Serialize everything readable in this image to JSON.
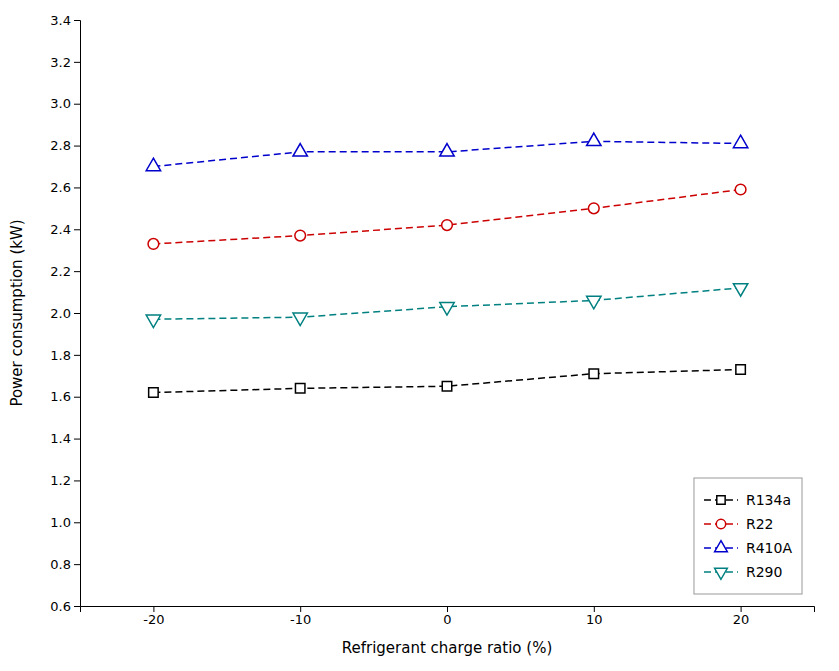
{
  "chart_data": {
    "type": "line",
    "xlabel": "Refrigerant charge ratio (%)",
    "ylabel": "Power consumption (kW)",
    "x": [
      -20,
      -10,
      0,
      10,
      20
    ],
    "series": [
      {
        "name": "R134a",
        "color": "black",
        "marker": "square",
        "line_style": "dashed",
        "values": [
          1.62,
          1.64,
          1.65,
          1.71,
          1.73
        ]
      },
      {
        "name": "R22",
        "color": "#cc0000",
        "marker": "circle",
        "line_style": "dashed",
        "values": [
          2.33,
          2.37,
          2.42,
          2.5,
          2.59
        ]
      },
      {
        "name": "R410A",
        "color": "#0000cc",
        "marker": "triangle-up",
        "line_style": "dashed",
        "values": [
          2.7,
          2.77,
          2.77,
          2.82,
          2.81
        ]
      },
      {
        "name": "R290",
        "color": "#008080",
        "marker": "triangle-down",
        "line_style": "dashed",
        "values": [
          1.97,
          1.98,
          2.03,
          2.06,
          2.12
        ]
      }
    ],
    "xlim": [
      -25,
      25
    ],
    "xticks": [
      -20,
      -10,
      0,
      10,
      20
    ],
    "ylim": [
      0.6,
      3.4
    ],
    "yticks": [
      0.6,
      0.8,
      {
        "value": 1.0,
        "label": "1.0"
      },
      1.2,
      1.4,
      1.6,
      1.8,
      {
        "value": 2.0,
        "label": "2.0"
      },
      2.2,
      2.4,
      2.6,
      2.8,
      {
        "value": 3.0,
        "label": "3.0"
      },
      3.2,
      3.4
    ],
    "legend": "lower right",
    "grid": false
  }
}
